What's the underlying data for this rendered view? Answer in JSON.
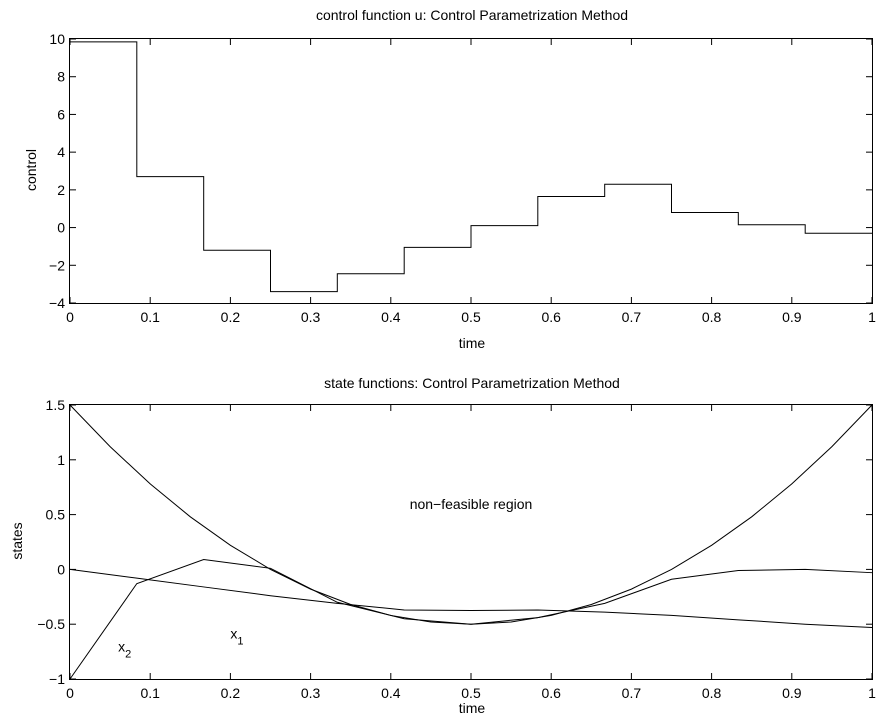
{
  "chart_data": [
    {
      "type": "line",
      "title": "control function u: Control Parametrization Method",
      "xlabel": "time",
      "ylabel": "control",
      "xlim": [
        0,
        1
      ],
      "ylim": [
        -4,
        10
      ],
      "xticks": [
        0,
        0.1,
        0.2,
        0.3,
        0.4,
        0.5,
        0.6,
        0.7,
        0.8,
        0.9,
        1
      ],
      "yticks": [
        -4,
        -2,
        0,
        2,
        4,
        6,
        8,
        10
      ],
      "xtick_labels": [
        "0",
        "0.1",
        "0.2",
        "0.3",
        "0.4",
        "0.5",
        "0.6",
        "0.7",
        "0.8",
        "0.9",
        "1"
      ],
      "ytick_labels": [
        "−4",
        "−2",
        "0",
        "2",
        "4",
        "6",
        "8",
        "10"
      ],
      "grid": false,
      "annotations": [],
      "series": [
        {
          "step": true,
          "x": [
            0,
            0.0833,
            0.1667,
            0.25,
            0.3333,
            0.4167,
            0.5,
            0.5833,
            0.6667,
            0.75,
            0.8333,
            0.9167,
            1.0
          ],
          "y": [
            9.85,
            2.7,
            -1.2,
            -3.4,
            -2.45,
            -1.05,
            0.1,
            1.65,
            2.3,
            0.8,
            0.15,
            -0.3,
            -0.3
          ]
        }
      ]
    },
    {
      "type": "line",
      "title": "state functions: Control Parametrization Method",
      "xlabel": "time",
      "ylabel": "states",
      "xlim": [
        0,
        1
      ],
      "ylim": [
        -1,
        1.5
      ],
      "xticks": [
        0,
        0.1,
        0.2,
        0.3,
        0.4,
        0.5,
        0.6,
        0.7,
        0.8,
        0.9,
        1
      ],
      "yticks": [
        -1,
        -0.5,
        0,
        0.5,
        1,
        1.5
      ],
      "xtick_labels": [
        "0",
        "0.1",
        "0.2",
        "0.3",
        "0.4",
        "0.5",
        "0.6",
        "0.7",
        "0.8",
        "0.9",
        "1"
      ],
      "ytick_labels": [
        "−1",
        "−0.5",
        "0",
        "0.5",
        "1",
        "1.5"
      ],
      "grid": false,
      "annotations": [
        {
          "text": "non−feasible region",
          "x": 0.5,
          "y": 0.55
        },
        {
          "text": "x",
          "sub": "1",
          "x": 0.2,
          "y": -0.63
        },
        {
          "text": "x",
          "sub": "2",
          "x": 0.06,
          "y": -0.75
        }
      ],
      "series": [
        {
          "x": [
            0,
            0.0833,
            0.1667,
            0.25,
            0.3333,
            0.4167,
            0.5,
            0.5833,
            0.6667,
            0.75,
            0.8333,
            0.9167,
            1.0
          ],
          "y": [
            0.0,
            -0.08,
            -0.16,
            -0.24,
            -0.31,
            -0.37,
            -0.375,
            -0.37,
            -0.39,
            -0.42,
            -0.46,
            -0.5,
            -0.53
          ]
        },
        {
          "x": [
            0,
            0.0833,
            0.1667,
            0.25,
            0.3333,
            0.4167,
            0.5,
            0.5833,
            0.6667,
            0.75,
            0.8333,
            0.9167,
            1.0
          ],
          "y": [
            -1.0,
            -0.13,
            0.09,
            0.01,
            -0.3,
            -0.45,
            -0.5,
            -0.44,
            -0.31,
            -0.09,
            -0.01,
            0.0,
            -0.03
          ]
        },
        {
          "curve": "constraint",
          "x": [
            0,
            0.05,
            0.1,
            0.15,
            0.2,
            0.25,
            0.3,
            0.35,
            0.4,
            0.45,
            0.5,
            0.55,
            0.6,
            0.65,
            0.7,
            0.75,
            0.8,
            0.85,
            0.9,
            0.95,
            1.0
          ],
          "y": [
            1.5,
            1.12,
            0.78,
            0.48,
            0.22,
            0.0,
            -0.18,
            -0.32,
            -0.42,
            -0.48,
            -0.5,
            -0.48,
            -0.42,
            -0.32,
            -0.18,
            0.0,
            0.22,
            0.48,
            0.78,
            1.12,
            1.5
          ]
        }
      ]
    }
  ]
}
